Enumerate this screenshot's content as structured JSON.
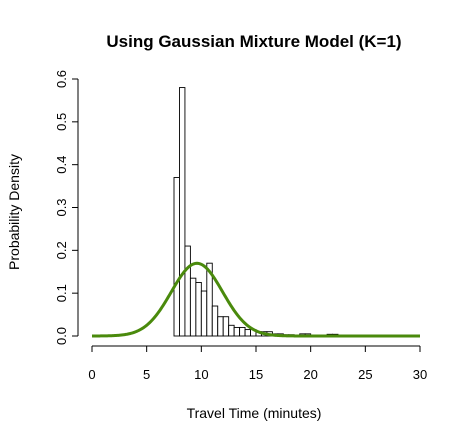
{
  "chart_data": {
    "type": "bar",
    "title": "Using Gaussian Mixture Model (K=1)",
    "xlabel": "Travel Time (minutes)",
    "ylabel": "Probability Density",
    "xlim": [
      0,
      30
    ],
    "ylim": [
      0,
      0.6
    ],
    "x_ticks": [
      0,
      5,
      10,
      15,
      20,
      25,
      30
    ],
    "y_ticks": [
      0.0,
      0.1,
      0.2,
      0.3,
      0.4,
      0.5,
      0.6
    ],
    "x_tick_labels": [
      "0",
      "5",
      "10",
      "15",
      "20",
      "25",
      "30"
    ],
    "y_tick_labels": [
      "0.0",
      "0.1",
      "0.2",
      "0.3",
      "0.4",
      "0.5",
      "0.6"
    ],
    "grid": false,
    "histogram": {
      "bin_width": 0.5,
      "bins": [
        {
          "x0": 7.5,
          "x1": 8.0,
          "density": 0.37
        },
        {
          "x0": 8.0,
          "x1": 8.5,
          "density": 0.58
        },
        {
          "x0": 8.5,
          "x1": 9.0,
          "density": 0.21
        },
        {
          "x0": 9.0,
          "x1": 9.5,
          "density": 0.135
        },
        {
          "x0": 9.5,
          "x1": 10.0,
          "density": 0.125
        },
        {
          "x0": 10.0,
          "x1": 10.5,
          "density": 0.105
        },
        {
          "x0": 10.5,
          "x1": 11.0,
          "density": 0.17
        },
        {
          "x0": 11.0,
          "x1": 11.5,
          "density": 0.07
        },
        {
          "x0": 11.5,
          "x1": 12.0,
          "density": 0.045
        },
        {
          "x0": 12.0,
          "x1": 12.5,
          "density": 0.045
        },
        {
          "x0": 12.5,
          "x1": 13.0,
          "density": 0.025
        },
        {
          "x0": 13.0,
          "x1": 13.5,
          "density": 0.02
        },
        {
          "x0": 13.5,
          "x1": 14.0,
          "density": 0.02
        },
        {
          "x0": 14.0,
          "x1": 14.5,
          "density": 0.015
        },
        {
          "x0": 14.5,
          "x1": 15.0,
          "density": 0.015
        },
        {
          "x0": 15.0,
          "x1": 15.5,
          "density": 0.01
        },
        {
          "x0": 15.5,
          "x1": 16.0,
          "density": 0.01
        },
        {
          "x0": 16.0,
          "x1": 16.5,
          "density": 0.01
        },
        {
          "x0": 16.5,
          "x1": 17.0,
          "density": 0.005
        },
        {
          "x0": 17.0,
          "x1": 17.5,
          "density": 0.005
        },
        {
          "x0": 17.5,
          "x1": 18.0,
          "density": 0.003
        },
        {
          "x0": 18.0,
          "x1": 18.5,
          "density": 0.003
        },
        {
          "x0": 18.5,
          "x1": 19.0,
          "density": 0.002
        },
        {
          "x0": 19.0,
          "x1": 19.5,
          "density": 0.005
        },
        {
          "x0": 19.5,
          "x1": 20.0,
          "density": 0.005
        },
        {
          "x0": 20.0,
          "x1": 20.5,
          "density": 0.002
        },
        {
          "x0": 20.5,
          "x1": 21.0,
          "density": 0.002
        },
        {
          "x0": 21.0,
          "x1": 21.5,
          "density": 0.002
        },
        {
          "x0": 21.5,
          "x1": 22.0,
          "density": 0.004
        },
        {
          "x0": 22.0,
          "x1": 22.5,
          "density": 0.004
        }
      ]
    },
    "curve": {
      "kind": "gaussian",
      "mean": 9.6,
      "sd": 2.35,
      "color": "#4a8a0c",
      "x_range": [
        0,
        30
      ]
    }
  }
}
